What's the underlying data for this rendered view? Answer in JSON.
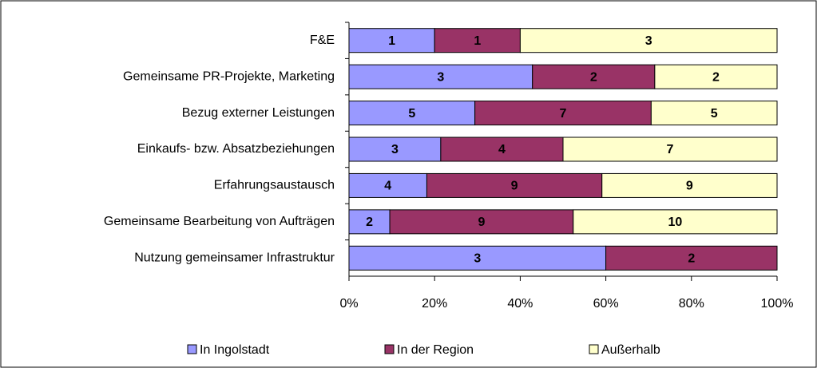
{
  "chart_data": {
    "type": "bar",
    "orientation": "horizontal",
    "stacked": "percent",
    "categories": [
      "F&E",
      "Gemeinsame PR-Projekte, Marketing",
      "Bezug externer Leistungen",
      "Einkaufs- bzw. Absatzbeziehungen",
      "Erfahrungsaustausch",
      "Gemeinsame Bearbeitung von Aufträgen",
      "Nutzung gemeinsamer Infrastruktur"
    ],
    "series": [
      {
        "name": "In Ingolstadt",
        "color": "#9999ff",
        "values": [
          1,
          3,
          5,
          3,
          4,
          2,
          3
        ]
      },
      {
        "name": "In der Region",
        "color": "#993366",
        "values": [
          1,
          2,
          7,
          4,
          9,
          9,
          2
        ]
      },
      {
        "name": "Außerhalb",
        "color": "#ffffcc",
        "values": [
          3,
          2,
          5,
          7,
          9,
          10,
          null
        ]
      }
    ],
    "xlim": [
      0,
      100
    ],
    "xticks": [
      {
        "value": 0,
        "label": "0%"
      },
      {
        "value": 20,
        "label": "20%"
      },
      {
        "value": 40,
        "label": "40%"
      },
      {
        "value": 60,
        "label": "60%"
      },
      {
        "value": 80,
        "label": "80%"
      },
      {
        "value": 100,
        "label": "100%"
      }
    ],
    "legend": "bottom"
  }
}
